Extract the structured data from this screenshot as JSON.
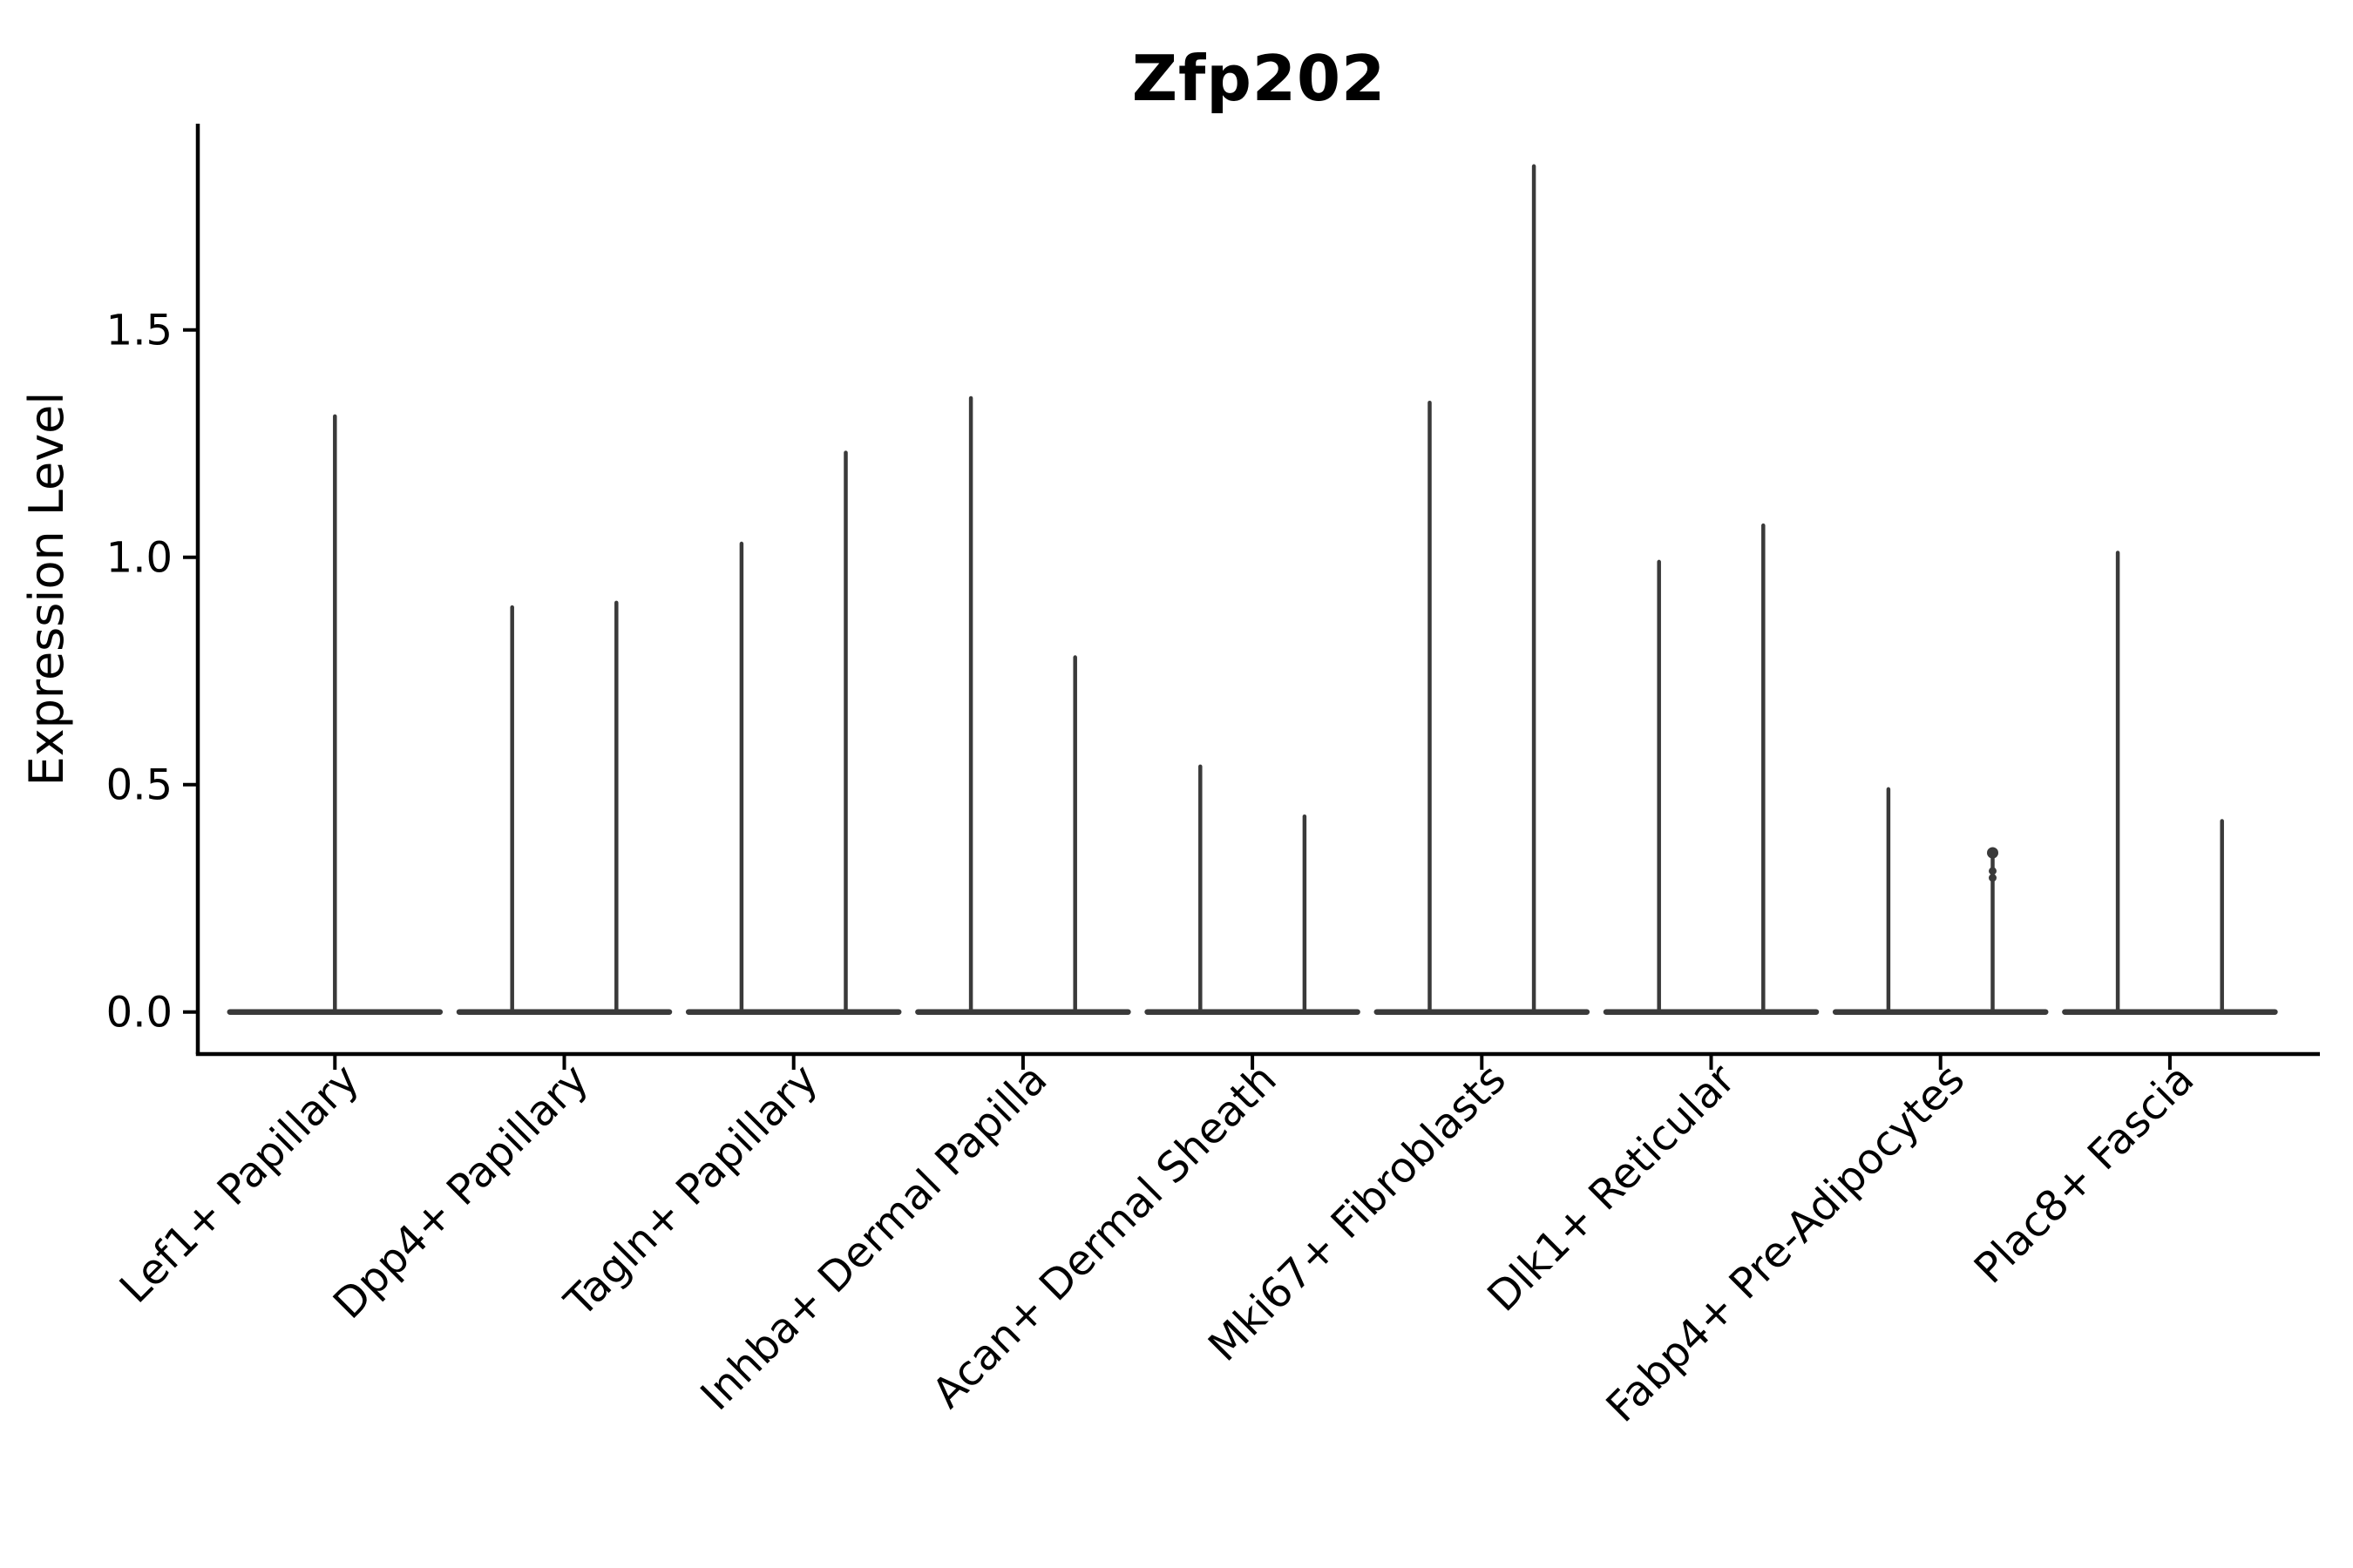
{
  "chart_data": {
    "type": "violin",
    "title": "Zfp202",
    "xlabel": "",
    "ylabel": "Expression Level",
    "ytick_labels": [
      "0.0",
      "0.5",
      "1.0",
      "1.5"
    ],
    "ytick_values": [
      0.0,
      0.5,
      1.0,
      1.5
    ],
    "ylim": [
      -0.09,
      1.95
    ],
    "grid": false,
    "legend": null,
    "description": "Single-gene violin plot; each cell-type violin is flattened to a horizontal baseline at expression 0 with thin vertical spikes marking the expression tails (max expression per violin).",
    "categories": [
      {
        "label": "Lef1+ Papillary",
        "spike_values": [
          1.31
        ]
      },
      {
        "label": "Dpp4+ Papillary",
        "spike_values": [
          0.89,
          0.9
        ]
      },
      {
        "label": "Tagln+ Papillary",
        "spike_values": [
          1.03,
          1.23
        ]
      },
      {
        "label": "Inhba+ Dermal Papilla",
        "spike_values": [
          1.35,
          0.78
        ]
      },
      {
        "label": "Acan+ Dermal Sheath",
        "spike_values": [
          0.54,
          0.43
        ]
      },
      {
        "label": "Mki67+ Fibroblasts",
        "spike_values": [
          1.34,
          1.86
        ]
      },
      {
        "label": "Dlk1+ Reticular",
        "spike_values": [
          0.99,
          1.07
        ]
      },
      {
        "label": "Fabp4+ Pre-Adipocytes",
        "spike_values": [
          0.49,
          0.35
        ],
        "knob_dots": [
          0.35,
          0.31,
          0.295
        ]
      },
      {
        "label": "Plac8+ Fascia",
        "spike_values": [
          1.01,
          0.42
        ]
      }
    ]
  },
  "colors": {
    "violin": "#3a3a3a",
    "axis": "#000000",
    "text": "#000000",
    "background": "#ffffff"
  }
}
